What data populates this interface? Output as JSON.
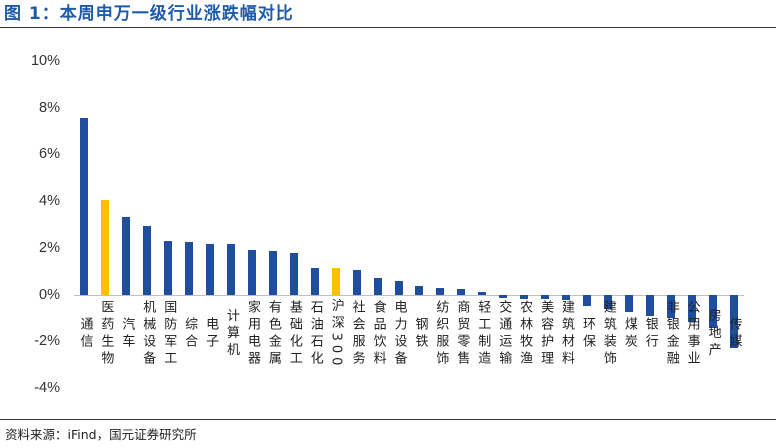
{
  "header": {
    "title": "图 1：本周申万一级行业涨跌幅对比"
  },
  "footer": {
    "source": "资料来源：iFind，国元证券研究所"
  },
  "colors": {
    "title": "#1F5CA8",
    "bar": "#1F4E9F",
    "highlight_bar": "#FFC000",
    "zero_line": "#BFBFBF",
    "rule": "#333333"
  },
  "chart_data": {
    "type": "bar",
    "categories": [
      "通信",
      "医药生物",
      "汽车",
      "机械设备",
      "国防军工",
      "综合",
      "电子",
      "计算机",
      "家用电器",
      "有色金属",
      "基础化工",
      "石油石化",
      "沪深300",
      "社会服务",
      "食品饮料",
      "电力设备",
      "钢铁",
      "纺织服饰",
      "商贸零售",
      "轻工制造",
      "交通运输",
      "农林牧渔",
      "美容护理",
      "建筑材料",
      "环保",
      "建筑装饰",
      "煤炭",
      "银行",
      "非银金融",
      "公用事业",
      "房地产",
      "传媒"
    ],
    "values": [
      7.57,
      4.03,
      3.3,
      2.93,
      2.28,
      2.25,
      2.18,
      2.15,
      1.9,
      1.85,
      1.8,
      1.15,
      1.12,
      1.07,
      0.69,
      0.58,
      0.37,
      0.26,
      0.24,
      0.09,
      -0.14,
      -0.17,
      -0.19,
      -0.25,
      -0.49,
      -0.62,
      -0.74,
      -0.92,
      -1.02,
      -1.16,
      -1.42,
      -2.29
    ],
    "bar_colors": [
      "#1F4E9F",
      "#FFC000",
      "#1F4E9F",
      "#1F4E9F",
      "#1F4E9F",
      "#1F4E9F",
      "#1F4E9F",
      "#1F4E9F",
      "#1F4E9F",
      "#1F4E9F",
      "#1F4E9F",
      "#1F4E9F",
      "#FFC000",
      "#1F4E9F",
      "#1F4E9F",
      "#1F4E9F",
      "#1F4E9F",
      "#1F4E9F",
      "#1F4E9F",
      "#1F4E9F",
      "#1F4E9F",
      "#1F4E9F",
      "#1F4E9F",
      "#1F4E9F",
      "#1F4E9F",
      "#1F4E9F",
      "#1F4E9F",
      "#1F4E9F",
      "#1F4E9F",
      "#1F4E9F",
      "#1F4E9F",
      "#1F4E9F"
    ],
    "yticks": [
      {
        "value": 10,
        "label": "10%"
      },
      {
        "value": 8,
        "label": "8%"
      },
      {
        "value": 6,
        "label": "6%"
      },
      {
        "value": 4,
        "label": "4%"
      },
      {
        "value": 2,
        "label": "2%"
      },
      {
        "value": 0,
        "label": "0%"
      },
      {
        "value": -2,
        "label": "-2%"
      },
      {
        "value": -4,
        "label": "-4%"
      }
    ],
    "ylim": [
      -4,
      10
    ],
    "grid": false
  }
}
